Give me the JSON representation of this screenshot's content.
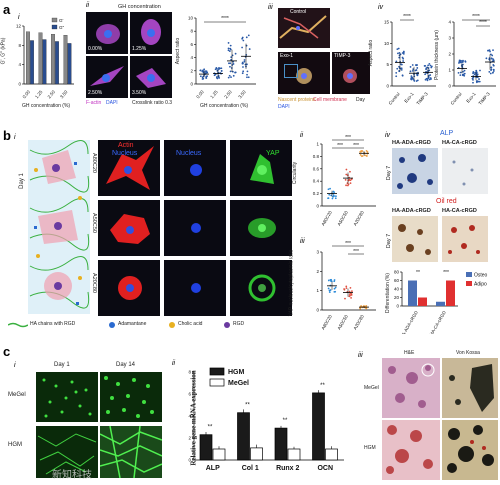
{
  "panel_a": {
    "letter": "a",
    "i": {
      "label": "i",
      "ylabel": "G', G'' (kPa)",
      "xlabel": "GH concentration (%)",
      "legend": [
        "G'",
        "G''"
      ]
    },
    "ii": {
      "label": "ii",
      "title": "GH concentration",
      "tiles": [
        "0.00%",
        "1.25%",
        "2.50%",
        "3.50%"
      ],
      "stain_actin": "F-actin",
      "stain_dapi": "DAPI",
      "crosslink": "Crosslink ratio 0.3"
    },
    "aspect": {
      "ylabel": "Aspect ratio",
      "xlabel": "GH concentration (%)",
      "sig": "****"
    },
    "iii": {
      "label": "iii",
      "tiles": [
        "Control",
        "Exo-1",
        "TIMP-3"
      ],
      "legend_1": "Nascent proteins",
      "legend_2": "Cell membrane",
      "legend_3": "DAPI",
      "legend_4": "Day"
    },
    "iv": {
      "label": "iv",
      "ylabel_1": "Aspect ratio",
      "ylabel_2": "Protein thickness (µm)",
      "sig": "****"
    }
  },
  "panel_b": {
    "letter": "b",
    "i": {
      "label": "i",
      "day": "Day 1",
      "rows": [
        "A80C20",
        "A50C50",
        "A20C80"
      ],
      "col_actin": "Actin",
      "col_nucleus": "Nucleus",
      "col_nucleus2": "Nucleus",
      "col_yap": "YAP"
    },
    "legend": [
      "HA chains with RGD",
      "Adamantane",
      "Cholic acid",
      "RGD"
    ],
    "ii": {
      "label": "ii",
      "ylabel": "Circularity",
      "categories": [
        "A80C20",
        "A50C50",
        "A20C80"
      ],
      "sig": "***"
    },
    "iii": {
      "label": "iii",
      "ylabel": "YAP nucleus/cytoplasmic ratio",
      "categories": [
        "A80C20",
        "A50C50",
        "A20C80"
      ],
      "sig": "***"
    },
    "iv": {
      "label": "iv",
      "alp": "ALP",
      "oil_red": "Oil red",
      "col_1": "HA-ADA-cRGD",
      "col_2": "HA-CA-cRGD",
      "day": "Day 7",
      "legend": [
        "Osteo",
        "Adipo"
      ],
      "ylabel": "Differentiation (%)",
      "sig_1": "**",
      "sig_2": "***"
    }
  },
  "panel_c": {
    "letter": "c",
    "i": {
      "label": "i",
      "day_1": "Day 1",
      "day_14": "Day 14",
      "rows": [
        "MeGel",
        "HGM"
      ]
    },
    "ii": {
      "label": "ii",
      "ylabel": "Relative gene mRNA expression",
      "legend": [
        "HGM",
        "MeGel"
      ],
      "sig": "**"
    },
    "iii": {
      "label": "iii",
      "col_1": "H&E",
      "col_2": "Von Kossa",
      "rows": [
        "MeGel",
        "HGM"
      ]
    }
  },
  "watermark": "新知科技",
  "chart_data": [
    {
      "type": "bar",
      "title": "",
      "xlabel": "GH concentration (%)",
      "ylabel": "G', G'' (kPa)",
      "categories": [
        "0.00",
        "1.25",
        "2.50",
        "3.50"
      ],
      "series": [
        {
          "name": "G'",
          "values": [
            10.8,
            10.6,
            10.3,
            10.1
          ],
          "color": "#888888"
        },
        {
          "name": "G''",
          "values": [
            9.0,
            9.2,
            8.8,
            8.4
          ],
          "color": "#2a4d8f"
        }
      ],
      "ylim": [
        0,
        12
      ]
    },
    {
      "type": "bar",
      "title": "",
      "xlabel": "",
      "ylabel": "Relative gene mRNA expression",
      "categories": [
        "ALP",
        "Col 1",
        "Runx 2",
        "OCN"
      ],
      "series": [
        {
          "name": "HGM",
          "values": [
            2.3,
            4.3,
            2.9,
            6.1
          ],
          "color": "#1a1a1a"
        },
        {
          "name": "MeGel",
          "values": [
            1.0,
            1.1,
            1.0,
            1.0
          ],
          "color": "#ffffff"
        }
      ],
      "ylim": [
        0,
        8
      ]
    },
    {
      "type": "scatter",
      "title": "",
      "ylabel": "Circularity",
      "categories": [
        "A80C20",
        "A50C50",
        "A20C80"
      ],
      "means": [
        0.2,
        0.45,
        0.85
      ],
      "ylim": [
        0,
        1
      ]
    },
    {
      "type": "scatter",
      "title": "",
      "ylabel": "YAP nucleus/cytoplasmic ratio",
      "categories": [
        "A80C20",
        "A50C50",
        "A20C80"
      ],
      "means": [
        1.25,
        0.9,
        0.15
      ],
      "ylim": [
        0,
        3
      ]
    },
    {
      "type": "bar",
      "title": "",
      "ylabel": "Differentiation (%)",
      "categories": [
        "HA-ADA-cRGD",
        "HA-CA-cRGD"
      ],
      "series": [
        {
          "name": "Osteo",
          "values": [
            60,
            10
          ],
          "color": "#4a6fb5"
        },
        {
          "name": "Adipo",
          "values": [
            20,
            60
          ],
          "color": "#e03030"
        }
      ],
      "ylim": [
        0,
        80
      ]
    }
  ]
}
